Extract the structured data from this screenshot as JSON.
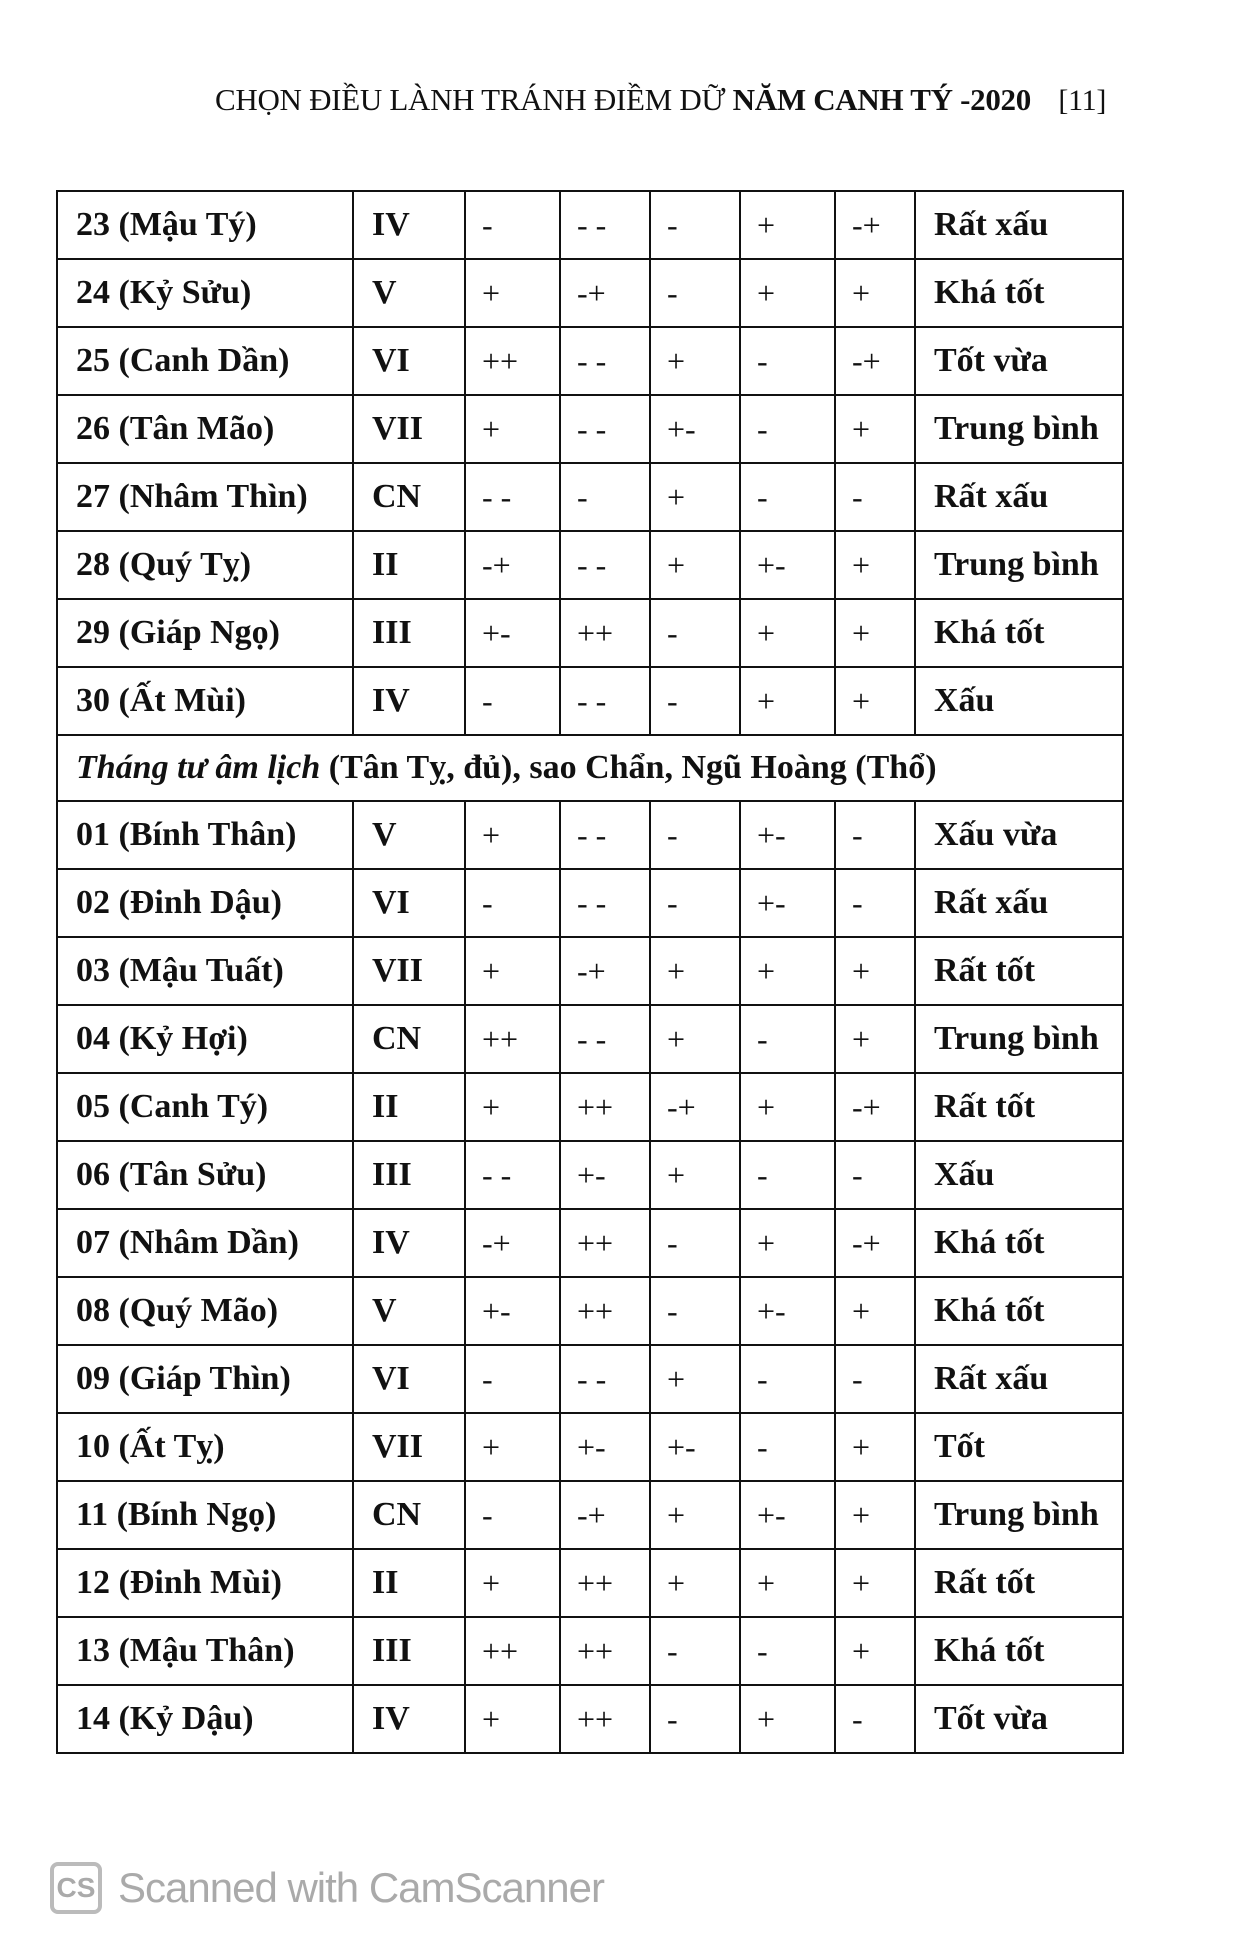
{
  "header": {
    "title_normal": "CHỌN ĐIỀU LÀNH TRÁNH ĐIỀM DỮ",
    "title_bold": "NĂM CANH TÝ -2020",
    "page_number": "[11]"
  },
  "rows_a": [
    {
      "day": "23 (Mậu Tý)",
      "weekday": "IV",
      "c1": "-",
      "c2": "- -",
      "c3": "-",
      "c4": "+",
      "c5": "-+",
      "eval": "Rất xấu"
    },
    {
      "day": "24 (Kỷ Sửu)",
      "weekday": "V",
      "c1": "+",
      "c2": "-+",
      "c3": "-",
      "c4": "+",
      "c5": "+",
      "eval": "Khá tốt"
    },
    {
      "day": "25 (Canh Dần)",
      "weekday": "VI",
      "c1": "++",
      "c2": "- -",
      "c3": "+",
      "c4": "-",
      "c5": "-+",
      "eval": "Tốt vừa"
    },
    {
      "day": "26 (Tân Mão)",
      "weekday": "VII",
      "c1": "+",
      "c2": "- -",
      "c3": "+-",
      "c4": "-",
      "c5": "+",
      "eval": "Trung bình"
    },
    {
      "day": "27 (Nhâm Thìn)",
      "weekday": "CN",
      "c1": "- -",
      "c2": "-",
      "c3": "+",
      "c4": "-",
      "c5": "-",
      "eval": "Rất xấu"
    },
    {
      "day": "28 (Quý Tỵ)",
      "weekday": "II",
      "c1": "-+",
      "c2": "- -",
      "c3": "+",
      "c4": "+-",
      "c5": "+",
      "eval": "Trung bình"
    },
    {
      "day": "29 (Giáp Ngọ)",
      "weekday": "III",
      "c1": "+-",
      "c2": "++",
      "c3": "-",
      "c4": "+",
      "c5": "+",
      "eval": "Khá tốt"
    },
    {
      "day": "30 (Ất Mùi)",
      "weekday": "IV",
      "c1": "-",
      "c2": "- -",
      "c3": "-",
      "c4": "+",
      "c5": "+",
      "eval": "Xấu"
    }
  ],
  "section": {
    "italic": "Tháng tư âm lịch",
    "rest": " (Tân Tỵ, đủ), sao Chẩn,  Ngũ Hoàng (Thổ)"
  },
  "rows_b": [
    {
      "day": "01 (Bính Thân)",
      "weekday": "V",
      "c1": "+",
      "c2": "- -",
      "c3": "-",
      "c4": "+-",
      "c5": "-",
      "eval": "Xấu vừa"
    },
    {
      "day": "02 (Đinh Dậu)",
      "weekday": "VI",
      "c1": "-",
      "c2": "- -",
      "c3": "-",
      "c4": "+-",
      "c5": "-",
      "eval": "Rất xấu"
    },
    {
      "day": "03 (Mậu Tuất)",
      "weekday": "VII",
      "c1": "+",
      "c2": "-+",
      "c3": "+",
      "c4": "+",
      "c5": "+",
      "eval": "Rất tốt"
    },
    {
      "day": "04 (Kỷ Hợi)",
      "weekday": "CN",
      "c1": "++",
      "c2": "- -",
      "c3": "+",
      "c4": "-",
      "c5": "+",
      "eval": "Trung bình"
    },
    {
      "day": "05 (Canh Tý)",
      "weekday": "II",
      "c1": "+",
      "c2": "++",
      "c3": "-+",
      "c4": "+",
      "c5": "-+",
      "eval": "Rất tốt"
    },
    {
      "day": "06 (Tân Sửu)",
      "weekday": "III",
      "c1": "- -",
      "c2": "+-",
      "c3": "+",
      "c4": "-",
      "c5": "-",
      "eval": "Xấu"
    },
    {
      "day": "07 (Nhâm Dần)",
      "weekday": "IV",
      "c1": "-+",
      "c2": "++",
      "c3": "-",
      "c4": "+",
      "c5": "-+",
      "eval": "Khá tốt"
    },
    {
      "day": "08 (Quý Mão)",
      "weekday": "V",
      "c1": "+-",
      "c2": "++",
      "c3": "-",
      "c4": "+-",
      "c5": "+",
      "eval": "Khá tốt"
    },
    {
      "day": "09 (Giáp Thìn)",
      "weekday": "VI",
      "c1": "-",
      "c2": "- -",
      "c3": "+",
      "c4": "-",
      "c5": "-",
      "eval": "Rất xấu"
    },
    {
      "day": "10 (Ất Tỵ)",
      "weekday": "VII",
      "c1": "+",
      "c2": "+-",
      "c3": "+-",
      "c4": "-",
      "c5": "+",
      "eval": "Tốt"
    },
    {
      "day": "11 (Bính Ngọ)",
      "weekday": "CN",
      "c1": "-",
      "c2": "-+",
      "c3": "+",
      "c4": "+-",
      "c5": "+",
      "eval": "Trung bình"
    },
    {
      "day": "12 (Đinh Mùi)",
      "weekday": "II",
      "c1": "+",
      "c2": "++",
      "c3": "+",
      "c4": "+",
      "c5": "+",
      "eval": "Rất tốt"
    },
    {
      "day": "13 (Mậu Thân)",
      "weekday": "III",
      "c1": "++",
      "c2": "++",
      "c3": "-",
      "c4": "-",
      "c5": "+",
      "eval": "Khá tốt"
    },
    {
      "day": "14 (Kỷ Dậu)",
      "weekday": "IV",
      "c1": "+",
      "c2": "++",
      "c3": "-",
      "c4": "+",
      "c5": "-",
      "eval": "Tốt vừa"
    }
  ],
  "watermark": {
    "logo": "CS",
    "text": "Scanned with CamScanner"
  }
}
